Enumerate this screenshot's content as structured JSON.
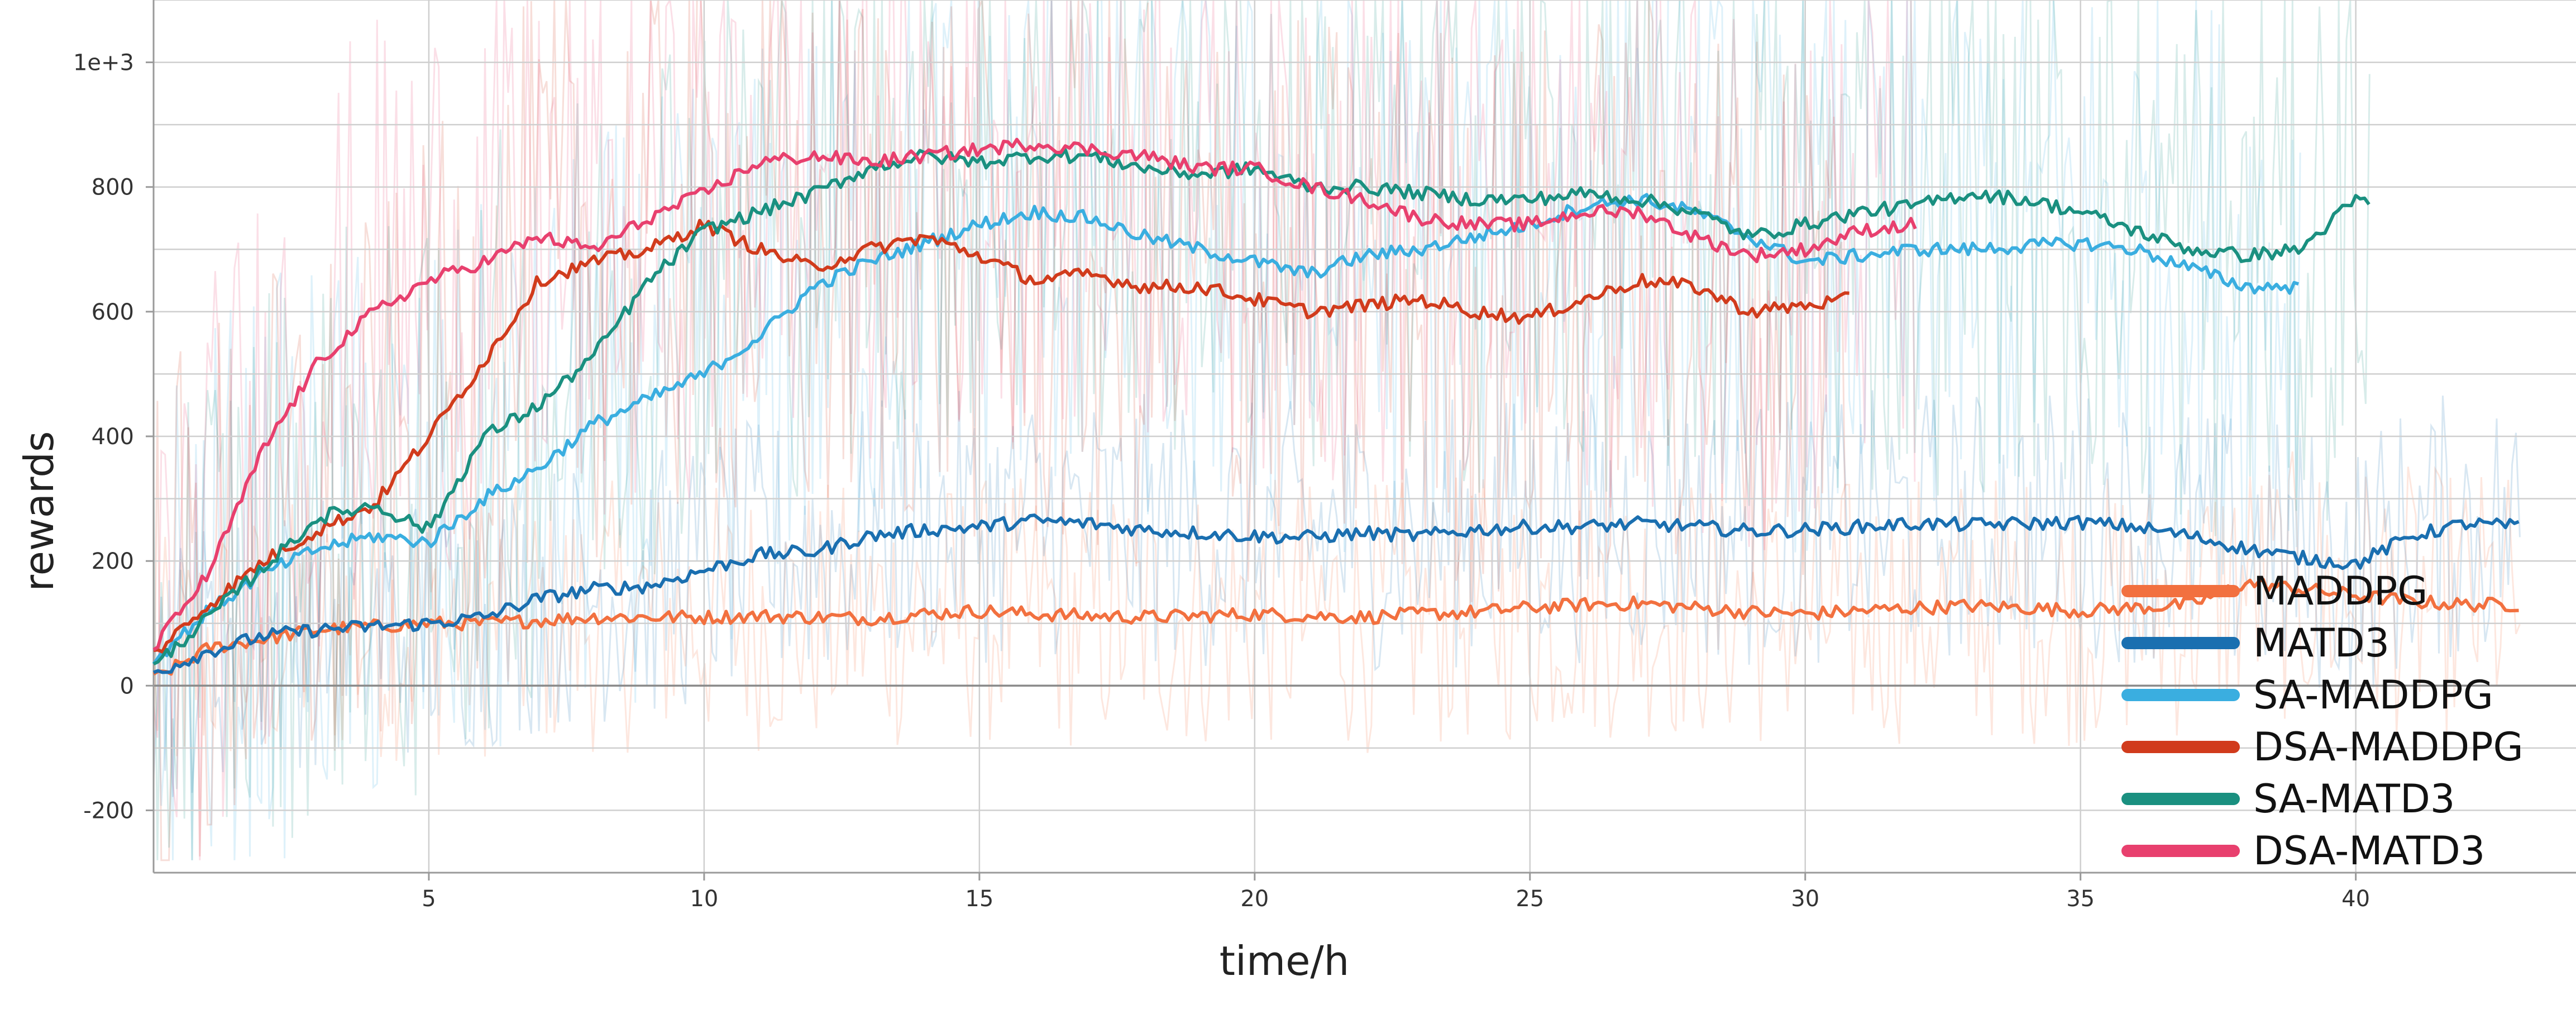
{
  "chart_data": {
    "type": "line",
    "title": "",
    "xlabel": "time/h",
    "ylabel": "rewards",
    "xlim": [
      0,
      44
    ],
    "ylim": [
      -300,
      1100
    ],
    "x_ticks": [
      5,
      10,
      15,
      20,
      25,
      30,
      35,
      40
    ],
    "x_tick_labels": [
      "5",
      "10",
      "15",
      "20",
      "25",
      "30",
      "35",
      "40"
    ],
    "y_ticks": [
      -200,
      0,
      200,
      400,
      600,
      800,
      1000
    ],
    "y_tick_labels": [
      "-200",
      "0",
      "200",
      "400",
      "600",
      "800",
      "1e+3"
    ],
    "grid": true,
    "legend_position": "bottom-right",
    "series": [
      {
        "name": "MADDPG",
        "color": "#f2703f",
        "x": [
          0,
          1,
          2,
          3,
          4,
          5,
          6,
          7,
          8,
          9,
          10,
          11,
          12,
          13,
          14,
          15,
          16,
          17,
          18,
          19,
          20,
          21,
          22,
          23,
          24,
          25,
          26,
          27,
          28,
          29,
          30,
          31,
          32,
          33,
          34,
          35,
          36,
          37,
          38,
          39,
          40,
          41,
          42,
          43
        ],
        "y": [
          10,
          60,
          75,
          90,
          95,
          100,
          100,
          105,
          110,
          110,
          110,
          112,
          110,
          108,
          115,
          120,
          115,
          112,
          110,
          112,
          115,
          112,
          110,
          115,
          118,
          125,
          130,
          132,
          125,
          118,
          115,
          120,
          125,
          128,
          125,
          120,
          125,
          130,
          165,
          155,
          145,
          135,
          130,
          130
        ]
      },
      {
        "name": "MATD3",
        "color": "#1a6fb0",
        "x": [
          0,
          1,
          2,
          3,
          4,
          5,
          6,
          7,
          8,
          9,
          10,
          11,
          12,
          13,
          14,
          15,
          16,
          17,
          18,
          19,
          20,
          21,
          22,
          23,
          24,
          25,
          26,
          27,
          28,
          29,
          30,
          31,
          32,
          33,
          34,
          35,
          36,
          37,
          38,
          39,
          40,
          41,
          42,
          43
        ],
        "y": [
          20,
          55,
          80,
          90,
          95,
          100,
          110,
          140,
          155,
          160,
          185,
          210,
          215,
          240,
          250,
          255,
          265,
          260,
          250,
          245,
          240,
          238,
          245,
          240,
          250,
          255,
          255,
          260,
          255,
          248,
          250,
          255,
          260,
          258,
          260,
          262,
          255,
          240,
          220,
          205,
          195,
          240,
          260,
          255
        ]
      },
      {
        "name": "SA-MADDPG",
        "color": "#3aaee0",
        "x": [
          0,
          1,
          2,
          3,
          4,
          5,
          6,
          7,
          8,
          9,
          10,
          11,
          12,
          13,
          14,
          15,
          16,
          17,
          18,
          19,
          20,
          21,
          22,
          23,
          24,
          25,
          26,
          27,
          28,
          29,
          30,
          31,
          32,
          33,
          34,
          35,
          36,
          37,
          38,
          39
        ],
        "y": [
          40,
          120,
          180,
          220,
          240,
          230,
          300,
          350,
          420,
          460,
          500,
          560,
          640,
          680,
          710,
          740,
          760,
          750,
          720,
          700,
          680,
          660,
          690,
          700,
          720,
          740,
          770,
          780,
          760,
          720,
          680,
          690,
          700,
          700,
          705,
          710,
          700,
          670,
          640,
          640
        ]
      },
      {
        "name": "DSA-MADDPG",
        "color": "#d13b1c",
        "x": [
          0,
          1,
          2,
          3,
          4,
          5,
          6,
          7,
          8,
          9,
          10,
          11,
          12,
          13,
          14,
          15,
          16,
          17,
          18,
          19,
          20,
          21,
          22,
          23,
          24,
          25,
          26,
          27,
          28,
          29,
          30,
          30.8
        ],
        "y": [
          50,
          130,
          200,
          250,
          290,
          400,
          520,
          650,
          680,
          700,
          740,
          700,
          670,
          700,
          720,
          690,
          650,
          660,
          640,
          640,
          620,
          600,
          610,
          620,
          600,
          590,
          620,
          650,
          640,
          600,
          610,
          620
        ]
      },
      {
        "name": "SA-MATD3",
        "color": "#1a9080",
        "x": [
          0,
          1,
          2,
          3,
          4,
          5,
          6,
          7,
          8,
          9,
          10,
          11,
          12,
          13,
          14,
          15,
          16,
          17,
          18,
          19,
          20,
          21,
          22,
          23,
          24,
          25,
          26,
          27,
          28,
          29,
          30,
          31,
          32,
          33,
          34,
          35,
          36,
          37,
          38,
          39,
          40,
          40.3
        ],
        "y": [
          30,
          110,
          190,
          270,
          290,
          250,
          400,
          450,
          530,
          650,
          730,
          760,
          790,
          830,
          850,
          840,
          850,
          850,
          830,
          820,
          830,
          800,
          800,
          790,
          780,
          780,
          790,
          780,
          760,
          720,
          740,
          760,
          770,
          790,
          780,
          760,
          730,
          700,
          690,
          700,
          780,
          770
        ]
      },
      {
        "name": "DSA-MATD3",
        "color": "#e8406e",
        "x": [
          0,
          1,
          2,
          3,
          4,
          5,
          6,
          7,
          8,
          9,
          10,
          11,
          12,
          13,
          14,
          15,
          16,
          17,
          18,
          19,
          20,
          21,
          22,
          23,
          24,
          25,
          26,
          27,
          28,
          29,
          30,
          31,
          32
        ],
        "y": [
          60,
          180,
          380,
          520,
          600,
          650,
          680,
          720,
          700,
          750,
          790,
          840,
          850,
          840,
          850,
          860,
          870,
          860,
          850,
          830,
          830,
          800,
          780,
          750,
          740,
          740,
          760,
          760,
          720,
          690,
          700,
          730,
          740
        ]
      }
    ]
  }
}
